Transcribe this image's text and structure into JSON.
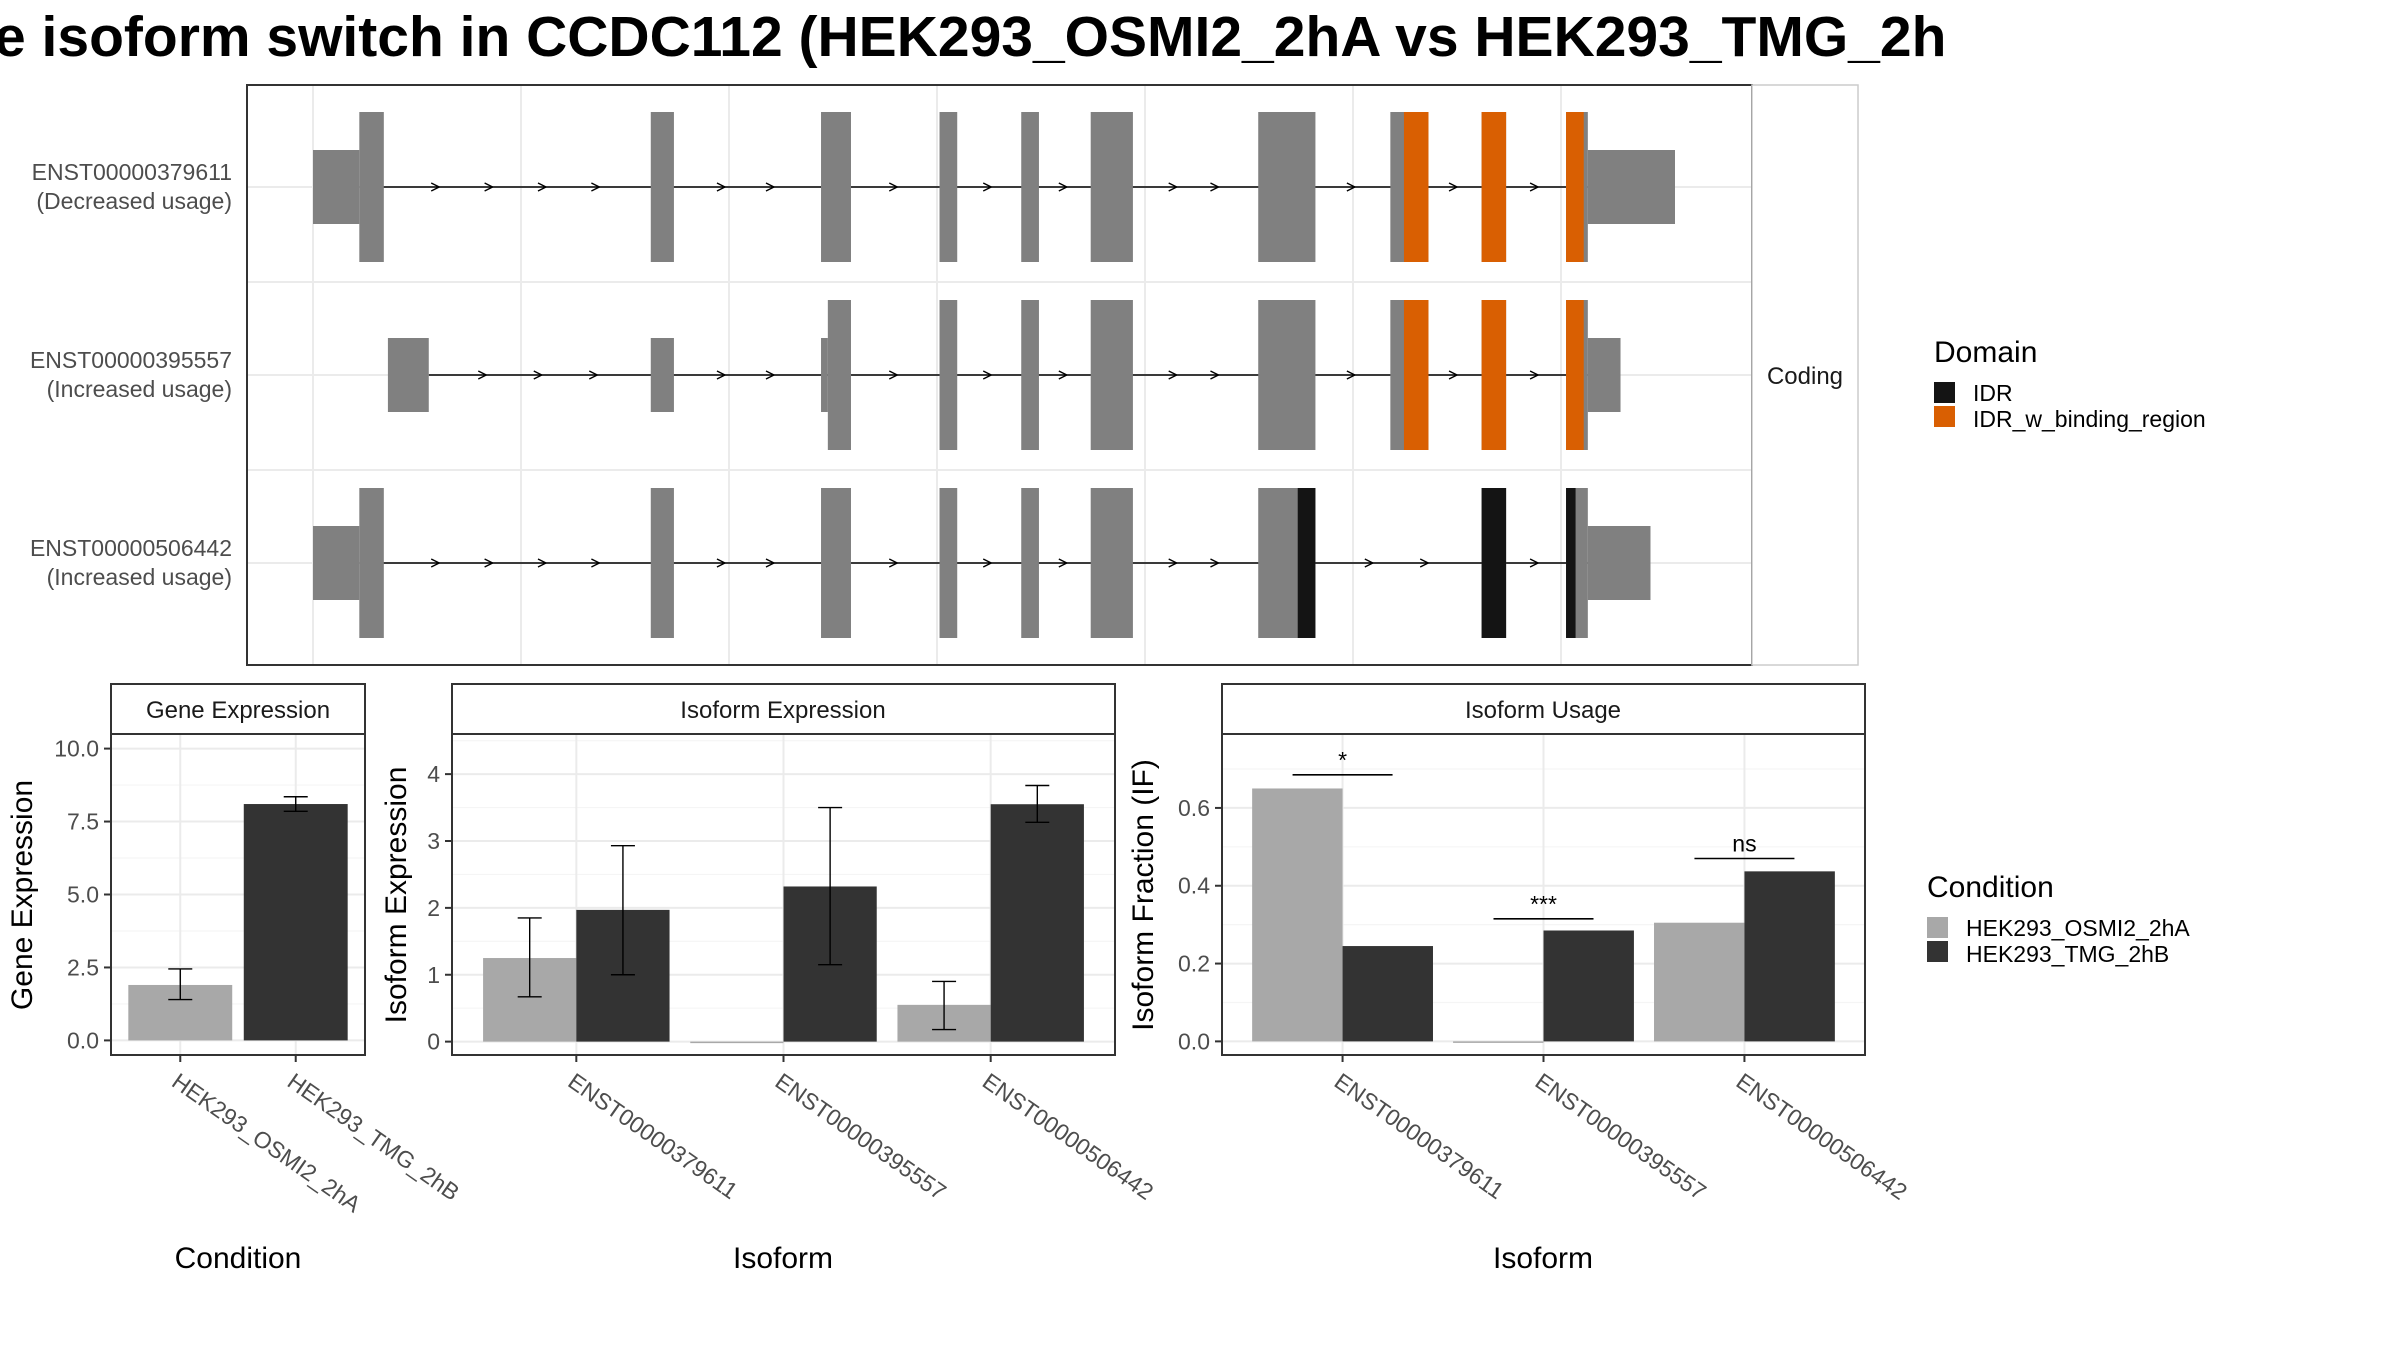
{
  "title": "e isoform switch in CCDC112 (HEK293_OSMI2_2hA vs HEK293_TMG_2h",
  "colors": {
    "exon": "#808080",
    "idr": "#141414",
    "idr_binding": "#d95f02",
    "cond_a": "#a8a8a8",
    "cond_b": "#333333"
  },
  "chart_data": [
    {
      "type": "transcript-structure",
      "panel_label": "Coding",
      "domain_legend": {
        "title": "Domain",
        "items": [
          {
            "label": "IDR",
            "color": "#141414"
          },
          {
            "label": "IDR_w_binding_region",
            "color": "#d95f02"
          }
        ]
      },
      "transcripts": [
        {
          "id": "ENST00000379611",
          "usage": "(Decreased usage)",
          "exons": [
            {
              "start": 0.0,
              "end": 0.034,
              "coding": false
            },
            {
              "start": 0.034,
              "end": 0.052,
              "coding": true
            },
            {
              "start": 0.248,
              "end": 0.265,
              "coding": true
            },
            {
              "start": 0.373,
              "end": 0.395,
              "coding": true
            },
            {
              "start": 0.46,
              "end": 0.473,
              "coding": true
            },
            {
              "start": 0.52,
              "end": 0.533,
              "coding": true
            },
            {
              "start": 0.571,
              "end": 0.602,
              "coding": true
            },
            {
              "start": 0.694,
              "end": 0.736,
              "coding": true
            },
            {
              "start": 0.791,
              "end": 0.819,
              "coding": true
            },
            {
              "start": 0.858,
              "end": 0.876,
              "coding": true
            },
            {
              "start": 0.92,
              "end": 0.936,
              "coding": true
            },
            {
              "start": 0.936,
              "end": 1.0,
              "coding": false
            }
          ],
          "domains": [
            {
              "name": "IDR_w_binding_region",
              "start": 0.801,
              "end": 0.819
            },
            {
              "name": "IDR_w_binding_region",
              "start": 0.858,
              "end": 0.876
            },
            {
              "name": "IDR_w_binding_region",
              "start": 0.92,
              "end": 0.933
            }
          ]
        },
        {
          "id": "ENST00000395557",
          "usage": "(Increased usage)",
          "exons": [
            {
              "start": 0.055,
              "end": 0.085,
              "coding": false
            },
            {
              "start": 0.248,
              "end": 0.265,
              "coding": false
            },
            {
              "start": 0.373,
              "end": 0.378,
              "coding": false
            },
            {
              "start": 0.378,
              "end": 0.395,
              "coding": true
            },
            {
              "start": 0.46,
              "end": 0.473,
              "coding": true
            },
            {
              "start": 0.52,
              "end": 0.533,
              "coding": true
            },
            {
              "start": 0.571,
              "end": 0.602,
              "coding": true
            },
            {
              "start": 0.694,
              "end": 0.736,
              "coding": true
            },
            {
              "start": 0.791,
              "end": 0.819,
              "coding": true
            },
            {
              "start": 0.858,
              "end": 0.876,
              "coding": true
            },
            {
              "start": 0.92,
              "end": 0.936,
              "coding": true
            },
            {
              "start": 0.936,
              "end": 0.96,
              "coding": false
            }
          ],
          "domains": [
            {
              "name": "IDR_w_binding_region",
              "start": 0.801,
              "end": 0.819
            },
            {
              "name": "IDR_w_binding_region",
              "start": 0.858,
              "end": 0.876
            },
            {
              "name": "IDR_w_binding_region",
              "start": 0.92,
              "end": 0.933
            }
          ]
        },
        {
          "id": "ENST00000506442",
          "usage": "(Increased usage)",
          "exons": [
            {
              "start": 0.0,
              "end": 0.034,
              "coding": false
            },
            {
              "start": 0.034,
              "end": 0.052,
              "coding": true
            },
            {
              "start": 0.248,
              "end": 0.265,
              "coding": true
            },
            {
              "start": 0.373,
              "end": 0.395,
              "coding": true
            },
            {
              "start": 0.46,
              "end": 0.473,
              "coding": true
            },
            {
              "start": 0.52,
              "end": 0.533,
              "coding": true
            },
            {
              "start": 0.571,
              "end": 0.602,
              "coding": true
            },
            {
              "start": 0.694,
              "end": 0.736,
              "coding": true
            },
            {
              "start": 0.858,
              "end": 0.876,
              "coding": true
            },
            {
              "start": 0.92,
              "end": 0.936,
              "coding": true
            },
            {
              "start": 0.936,
              "end": 0.982,
              "coding": false
            }
          ],
          "domains": [
            {
              "name": "IDR",
              "start": 0.723,
              "end": 0.736
            },
            {
              "name": "IDR",
              "start": 0.858,
              "end": 0.876
            },
            {
              "name": "IDR",
              "start": 0.92,
              "end": 0.927
            }
          ]
        }
      ]
    },
    {
      "type": "bar",
      "panel_label": "Gene Expression",
      "xlabel": "Condition",
      "ylabel": "Gene Expression",
      "ylim": [
        -0.5,
        10.5
      ],
      "yticks": [
        "0.0",
        "2.5",
        "5.0",
        "7.5",
        "10.0"
      ],
      "categories": [
        "HEK293_OSMI2_2hA",
        "HEK293_TMG_2hB"
      ],
      "series": [
        {
          "name": "HEK293_OSMI2_2hA",
          "values": [
            1.9,
            null
          ],
          "err_low": [
            1.4,
            null
          ],
          "err_high": [
            2.45,
            null
          ]
        },
        {
          "name": "HEK293_TMG_2hB",
          "values": [
            null,
            8.1
          ],
          "err_low": [
            null,
            7.85
          ],
          "err_high": [
            null,
            8.35
          ]
        }
      ]
    },
    {
      "type": "bar",
      "panel_label": "Isoform Expression",
      "xlabel": "Isoform",
      "ylabel": "Isoform Expression",
      "ylim": [
        -0.2,
        4.6
      ],
      "yticks": [
        "0",
        "1",
        "2",
        "3",
        "4"
      ],
      "categories": [
        "ENST00000379611",
        "ENST00000395557",
        "ENST00000506442"
      ],
      "series": [
        {
          "name": "HEK293_OSMI2_2hA",
          "values": [
            1.25,
            0.0,
            0.55
          ],
          "err_low": [
            0.67,
            null,
            0.18
          ],
          "err_high": [
            1.85,
            null,
            0.9
          ]
        },
        {
          "name": "HEK293_TMG_2hB",
          "values": [
            1.97,
            2.32,
            3.55
          ],
          "err_low": [
            1.0,
            1.15,
            3.28
          ],
          "err_high": [
            2.93,
            3.5,
            3.83
          ]
        }
      ]
    },
    {
      "type": "bar",
      "panel_label": "Isoform Usage",
      "xlabel": "Isoform",
      "ylabel": "Isoform Fraction (IF)",
      "ylim": [
        -0.035,
        0.79
      ],
      "yticks": [
        "0.0",
        "0.2",
        "0.4",
        "0.6"
      ],
      "categories": [
        "ENST00000379611",
        "ENST00000395557",
        "ENST00000506442"
      ],
      "series": [
        {
          "name": "HEK293_OSMI2_2hA",
          "values": [
            0.65,
            0.0,
            0.305
          ]
        },
        {
          "name": "HEK293_TMG_2hB",
          "values": [
            0.245,
            0.285,
            0.437
          ]
        }
      ],
      "significance": [
        {
          "label": "*",
          "y": 0.685
        },
        {
          "label": "***",
          "y": 0.315
        },
        {
          "label": "ns",
          "y": 0.47
        }
      ]
    }
  ],
  "condition_legend": {
    "title": "Condition",
    "items": [
      {
        "label": "HEK293_OSMI2_2hA",
        "color": "#a8a8a8"
      },
      {
        "label": "HEK293_TMG_2hB",
        "color": "#333333"
      }
    ]
  }
}
